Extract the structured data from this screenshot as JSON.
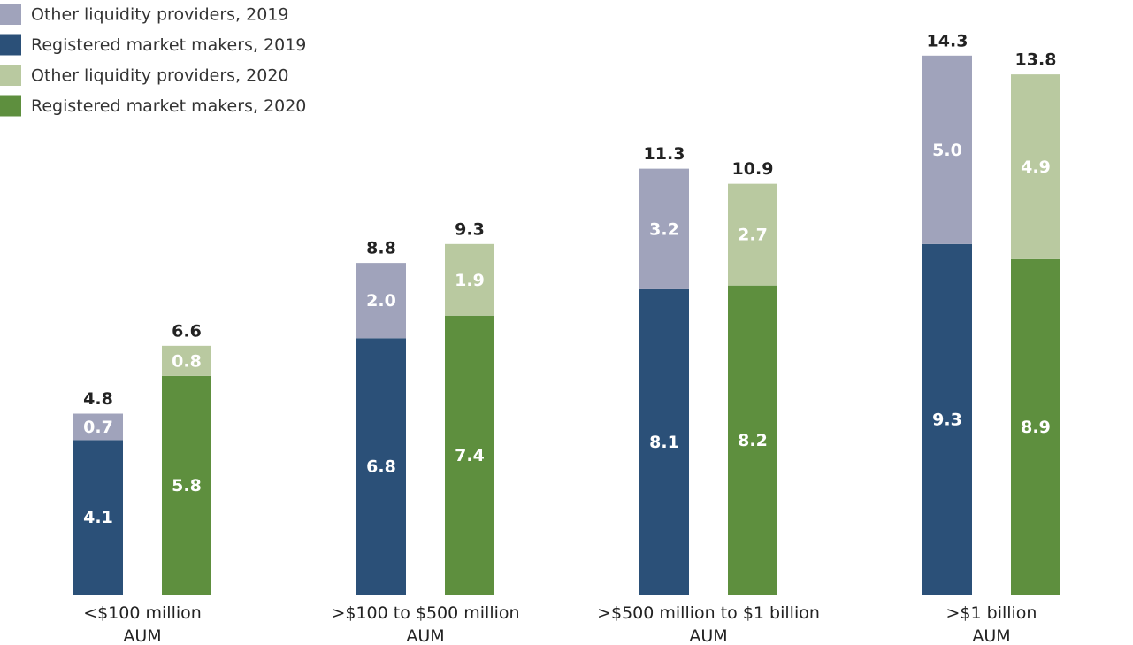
{
  "chart_data": {
    "type": "stacked-bar",
    "categories": [
      "<$100 million\nAUM",
      ">$100 to $500 million\nAUM",
      ">$500 million to $1 billion\nAUM",
      ">$1 billion\nAUM"
    ],
    "series": [
      {
        "name": "Other liquidity providers, 2019",
        "color": "#a0a3bb",
        "stack": 0,
        "values": [
          0.7,
          2.0,
          3.2,
          5.0
        ],
        "value_labels": [
          "0.7",
          "2.0",
          "3.2",
          "5.0"
        ]
      },
      {
        "name": "Registered market makers, 2019",
        "color": "#2b5078",
        "stack": 0,
        "values": [
          4.1,
          6.8,
          8.1,
          9.3
        ],
        "value_labels": [
          "4.1",
          "6.8",
          "8.1",
          "9.3"
        ]
      },
      {
        "name": "Other liquidity providers, 2020",
        "color": "#b9c9a0",
        "stack": 1,
        "values": [
          0.8,
          1.9,
          2.7,
          4.9
        ],
        "value_labels": [
          "0.8",
          "1.9",
          "2.7",
          "4.9"
        ]
      },
      {
        "name": "Registered market makers, 2020",
        "color": "#5e8f3e",
        "stack": 1,
        "values": [
          5.8,
          7.4,
          8.2,
          8.9
        ],
        "value_labels": [
          "5.8",
          "7.4",
          "8.2",
          "8.9"
        ]
      }
    ],
    "totals": [
      [
        4.8,
        8.8,
        11.3,
        14.3
      ],
      [
        6.6,
        9.3,
        10.9,
        13.8
      ]
    ],
    "legend": "top-left"
  }
}
